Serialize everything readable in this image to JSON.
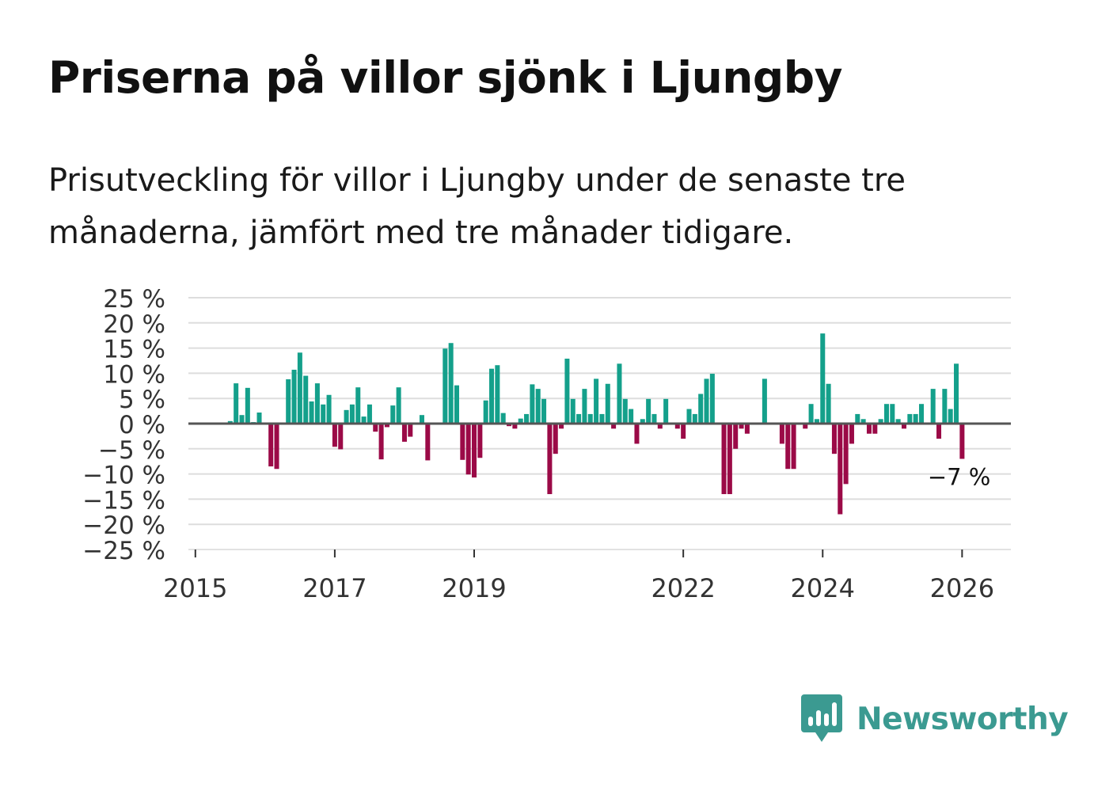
{
  "title": "Priserna på villor sjönk i Ljungby",
  "subtitle": "Prisutveckling för villor i Ljungby under de senaste tre månaderna, jämfört med tre månader tidigare.",
  "brand": {
    "name": "Newsworthy",
    "logo_icon": "bar-chart-speech-bubble-icon"
  },
  "colors": {
    "positive": "#14a08b",
    "negative": "#9b0a47",
    "grid": "#dddddd",
    "zero_line": "#555555",
    "brand": "#3b9a91"
  },
  "chart_data": {
    "type": "bar",
    "unit": "%",
    "ylim": [
      -25,
      25
    ],
    "y_ticks": [
      25,
      20,
      15,
      10,
      5,
      0,
      -5,
      -10,
      -15,
      -20,
      -25
    ],
    "y_tick_labels": [
      "25 %",
      "20 %",
      "15 %",
      "10 %",
      "5 %",
      "0 %",
      "−5 %",
      "−10 %",
      "−15 %",
      "−20 %",
      "−25 %"
    ],
    "x_range": [
      2014.9,
      2026.7
    ],
    "x_ticks": [
      2015,
      2017,
      2019,
      2022,
      2024,
      2026
    ],
    "x_tick_labels": [
      "2015",
      "2017",
      "2019",
      "2022",
      "2024",
      "2026"
    ],
    "grid": true,
    "series": [
      {
        "name": "Prisutveckling",
        "start": 2015.5,
        "step": 0.0833333,
        "values": [
          0.5,
          8,
          1.7,
          7.1,
          0.3,
          2.2,
          0,
          -8.5,
          -9,
          0,
          8.8,
          10.7,
          14.1,
          9.5,
          4.4,
          8,
          3.8,
          5.7,
          -4.6,
          -5.1,
          2.7,
          3.8,
          7.2,
          1.4,
          3.8,
          -1.6,
          -7.1,
          -0.7,
          3.6,
          7.2,
          -3.6,
          -2.6,
          0,
          1.7,
          -7.3,
          0,
          0,
          14.9,
          16,
          7.6,
          -7.2,
          -10.1,
          -10.7,
          -6.8,
          4.6,
          10.9,
          11.6,
          2.1,
          -0.5,
          -1,
          1,
          1.9,
          7.8,
          6.9,
          4.9,
          -14,
          -6,
          -1,
          12.9,
          4.9,
          1.9,
          6.9,
          1.9,
          8.9,
          1.9,
          7.9,
          -1,
          11.9,
          4.9,
          2.9,
          -4,
          0.9,
          4.9,
          1.9,
          -1,
          4.9,
          0,
          -1,
          -3,
          2.9,
          1.9,
          5.9,
          8.9,
          9.9,
          0,
          -14,
          -14,
          -5,
          -1,
          -2,
          0,
          0,
          8.9,
          0,
          0,
          -4,
          -9,
          -9,
          0,
          -1,
          3.9,
          0.9,
          17.9,
          7.9,
          -6,
          -18,
          -12,
          -4,
          1.9,
          0.9,
          -2,
          -2,
          0.9,
          3.9,
          3.9,
          0.9,
          -1,
          1.9,
          1.9,
          3.9,
          0,
          6.9,
          -3,
          6.9,
          2.9,
          11.9,
          -7
        ]
      }
    ],
    "last_value_label": "−7 %"
  }
}
